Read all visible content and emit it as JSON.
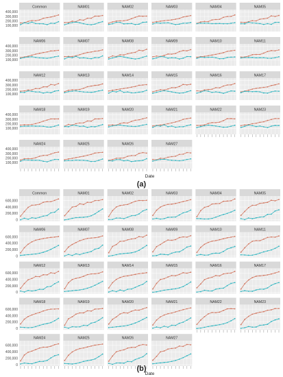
{
  "colors": {
    "series_red": "#D2765F",
    "series_cyan": "#2FB5C0",
    "strip": "#D9D9D9",
    "panel_bg": "#EBEBEB",
    "grid": "#FFFFFF"
  },
  "chart_data": [
    {
      "type": "line",
      "caption": "(a)",
      "xlabel": "Date",
      "ylabel": "",
      "ylim": [
        0,
        420000
      ],
      "yticks": [
        "100,000",
        "200,000",
        "300,000",
        "400,000"
      ],
      "panels": [
        "Common",
        "NAM01",
        "NAM02",
        "NAM03",
        "NAM04",
        "NAM05",
        "NAM06",
        "NAM07",
        "NAM08",
        "NAM09",
        "NAM10",
        "NAM11",
        "NAM12",
        "NAM13",
        "NAM14",
        "NAM15",
        "NAM16",
        "NAM17",
        "NAM18",
        "NAM19",
        "NAM20",
        "NAM21",
        "NAM22",
        "NAM23",
        "NAM24",
        "NAM25",
        "NAM26",
        "NAM27"
      ],
      "series": [
        {
          "values": [
            160000,
            175000,
            185000,
            200000,
            215000,
            230000,
            250000,
            270000,
            300000,
            310000,
            320000
          ]
        },
        {
          "values": [
            130000,
            150000,
            160000,
            165000,
            150000,
            140000,
            135000,
            130000,
            140000,
            160000,
            175000
          ]
        }
      ]
    },
    {
      "type": "line",
      "caption": "(b)",
      "xlabel": "Date",
      "ylabel": "",
      "ylim": [
        0,
        700000
      ],
      "yticks": [
        "0",
        "200,000",
        "400,000",
        "600,000"
      ],
      "panels": [
        "Common",
        "NAM01",
        "NAM02",
        "NAM03",
        "NAM04",
        "NAM05",
        "NAM06",
        "NAM07",
        "NAM08",
        "NAM09",
        "NAM10",
        "NAM11",
        "NAM12",
        "NAM13",
        "NAM14",
        "NAM15",
        "NAM16",
        "NAM17",
        "NAM18",
        "NAM19",
        "NAM20",
        "NAM21",
        "NAM22",
        "NAM23",
        "NAM24",
        "NAM25",
        "NAM26",
        "NAM27"
      ],
      "series": [
        {
          "values": [
            120000,
            280000,
            380000,
            440000,
            480000,
            500000,
            530000,
            560000,
            590000,
            610000,
            630000
          ]
        },
        {
          "values": [
            20000,
            30000,
            40000,
            50000,
            60000,
            80000,
            110000,
            150000,
            200000,
            260000,
            320000
          ]
        }
      ]
    }
  ]
}
